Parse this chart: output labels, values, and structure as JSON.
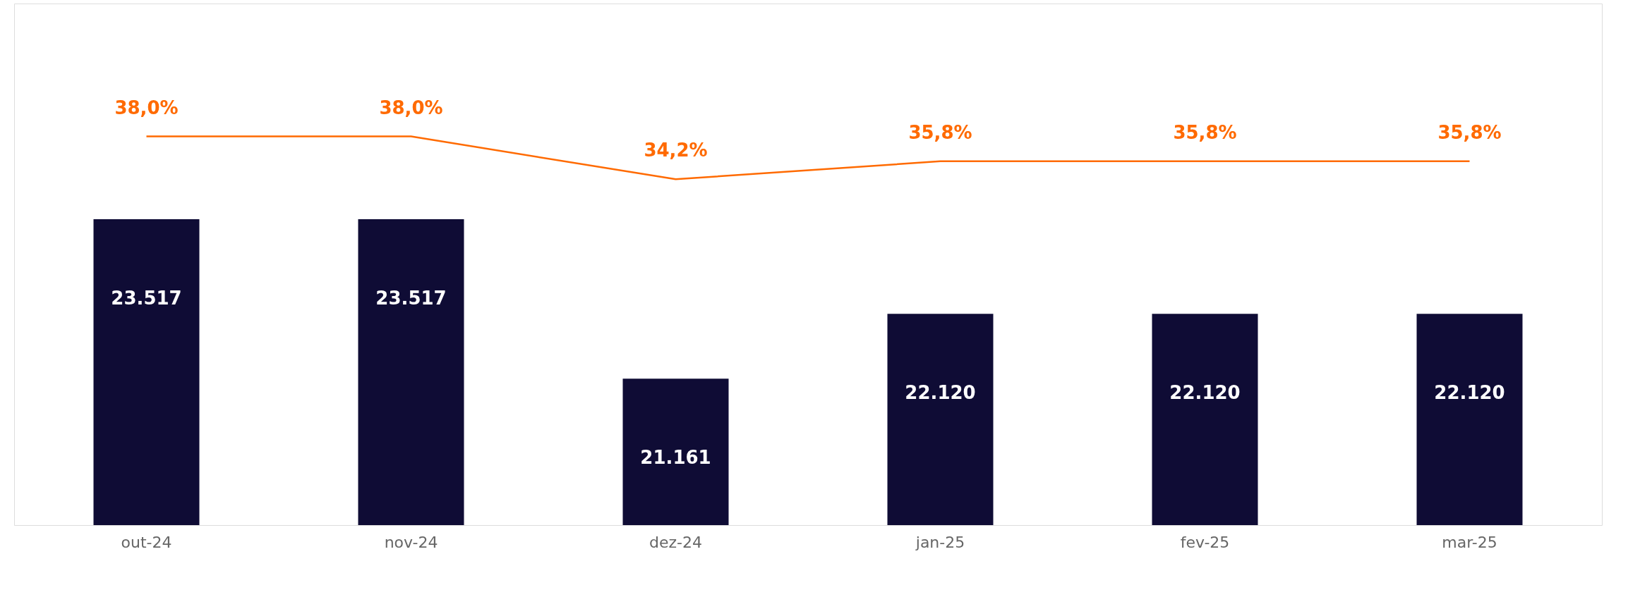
{
  "chart_data": {
    "type": "bar",
    "categories": [
      "out-24",
      "nov-24",
      "dez-24",
      "jan-25",
      "fev-25",
      "mar-25"
    ],
    "series": [
      {
        "color": "#0f0c35",
        "values": [
          23517,
          23517,
          21161,
          22120,
          22120,
          22120
        ],
        "value_labels": [
          "23.517",
          "23.517",
          "21.161",
          "22.120",
          "22.120",
          "22.120"
        ]
      },
      {
        "type": "line",
        "axis": "y2",
        "color": "#ff6a00",
        "values": [
          38.0,
          38.0,
          34.2,
          35.8,
          35.8,
          35.8
        ],
        "value_labels": [
          "38,0%",
          "38,0%",
          "34,2%",
          "35,8%",
          "35,8%",
          "35,8%"
        ]
      }
    ],
    "ylim": [
      19000,
      26700
    ],
    "y2lim": [
      3.5,
      49.8
    ],
    "tick_labels": "x",
    "grid": false
  }
}
